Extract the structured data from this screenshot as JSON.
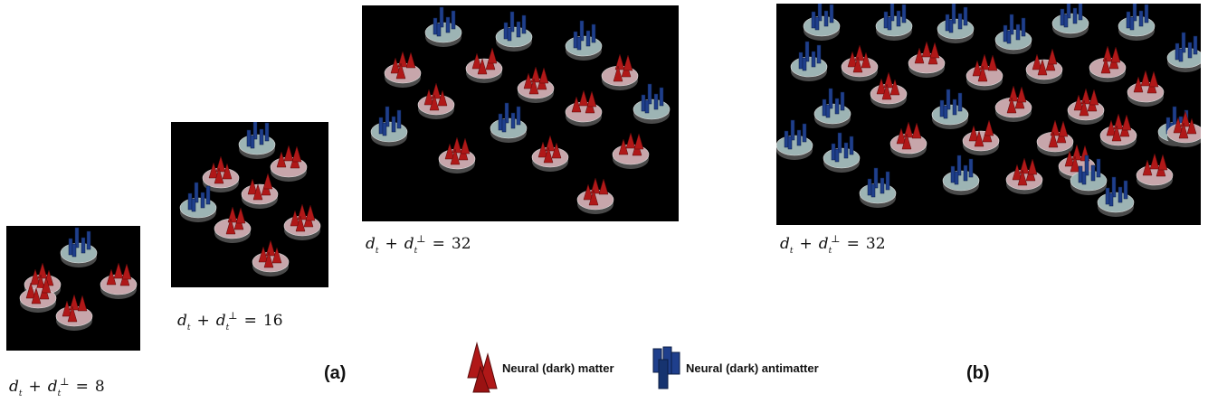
{
  "panels": [
    {
      "id": "p8",
      "caption_value": "8",
      "dishes": [
        [
          "anti",
          80,
          30
        ],
        [
          "matter",
          40,
          65
        ],
        [
          "matter",
          124,
          65
        ],
        [
          "matter",
          75,
          100
        ],
        [
          "matter",
          35,
          80
        ]
      ]
    },
    {
      "id": "p16",
      "caption_value": "16",
      "dishes": [
        [
          "anti",
          95,
          25
        ],
        [
          "matter",
          55,
          62
        ],
        [
          "matter",
          130,
          50
        ],
        [
          "anti",
          30,
          95
        ],
        [
          "matter",
          98,
          80
        ],
        [
          "matter",
          68,
          118
        ],
        [
          "matter",
          145,
          115
        ],
        [
          "matter",
          110,
          155
        ]
      ]
    },
    {
      "id": "p32a",
      "caption_value": "32",
      "dishes": [
        [
          "anti",
          90,
          30
        ],
        [
          "anti",
          168,
          35
        ],
        [
          "anti",
          245,
          45
        ],
        [
          "matter",
          45,
          75
        ],
        [
          "matter",
          135,
          70
        ],
        [
          "matter",
          285,
          78
        ],
        [
          "matter",
          192,
          92
        ],
        [
          "matter",
          82,
          110
        ],
        [
          "matter",
          245,
          118
        ],
        [
          "anti",
          320,
          115
        ],
        [
          "anti",
          30,
          140
        ],
        [
          "anti",
          162,
          136
        ],
        [
          "matter",
          105,
          170
        ],
        [
          "matter",
          208,
          168
        ],
        [
          "matter",
          297,
          165
        ],
        [
          "matter",
          258,
          215
        ]
      ]
    },
    {
      "id": "p32b",
      "caption_value": "32",
      "dishes": [
        [
          "anti",
          50,
          25
        ],
        [
          "anti",
          130,
          25
        ],
        [
          "anti",
          198,
          28
        ],
        [
          "anti",
          262,
          40
        ],
        [
          "anti",
          325,
          22
        ],
        [
          "anti",
          398,
          25
        ],
        [
          "anti",
          36,
          70
        ],
        [
          "matter",
          92,
          70
        ],
        [
          "matter",
          166,
          66
        ],
        [
          "matter",
          230,
          80
        ],
        [
          "matter",
          296,
          73
        ],
        [
          "matter",
          366,
          71
        ],
        [
          "anti",
          452,
          60
        ],
        [
          "matter",
          124,
          100
        ],
        [
          "matter",
          408,
          98
        ],
        [
          "anti",
          62,
          122
        ],
        [
          "anti",
          192,
          123
        ],
        [
          "matter",
          262,
          115
        ],
        [
          "matter",
          342,
          118
        ],
        [
          "anti",
          442,
          142
        ],
        [
          "anti",
          20,
          157
        ],
        [
          "matter",
          146,
          155
        ],
        [
          "matter",
          226,
          152
        ],
        [
          "matter",
          308,
          153
        ],
        [
          "matter",
          378,
          146
        ],
        [
          "matter",
          452,
          143
        ],
        [
          "anti",
          72,
          171
        ],
        [
          "matter",
          332,
          180
        ],
        [
          "anti",
          112,
          210
        ],
        [
          "anti",
          204,
          196
        ],
        [
          "matter",
          274,
          195
        ],
        [
          "anti",
          345,
          196
        ],
        [
          "matter",
          418,
          190
        ],
        [
          "anti",
          375,
          220
        ]
      ]
    }
  ],
  "caption_tex": {
    "d": "d",
    "sub_t": "t",
    "plus": "+",
    "perp": "⊥",
    "eq": "="
  },
  "labels": {
    "a": "(a)",
    "b": "(b)"
  },
  "legend": {
    "matter": "Neural (dark) matter",
    "antimatter": "Neural (dark) antimatter"
  },
  "colors": {
    "background_panel": "#000000",
    "matter_red": "#b01818",
    "antimatter_blue": "#1f3f8c",
    "dish_matter": "#c7a6ab",
    "dish_anti": "#9db4b4"
  }
}
